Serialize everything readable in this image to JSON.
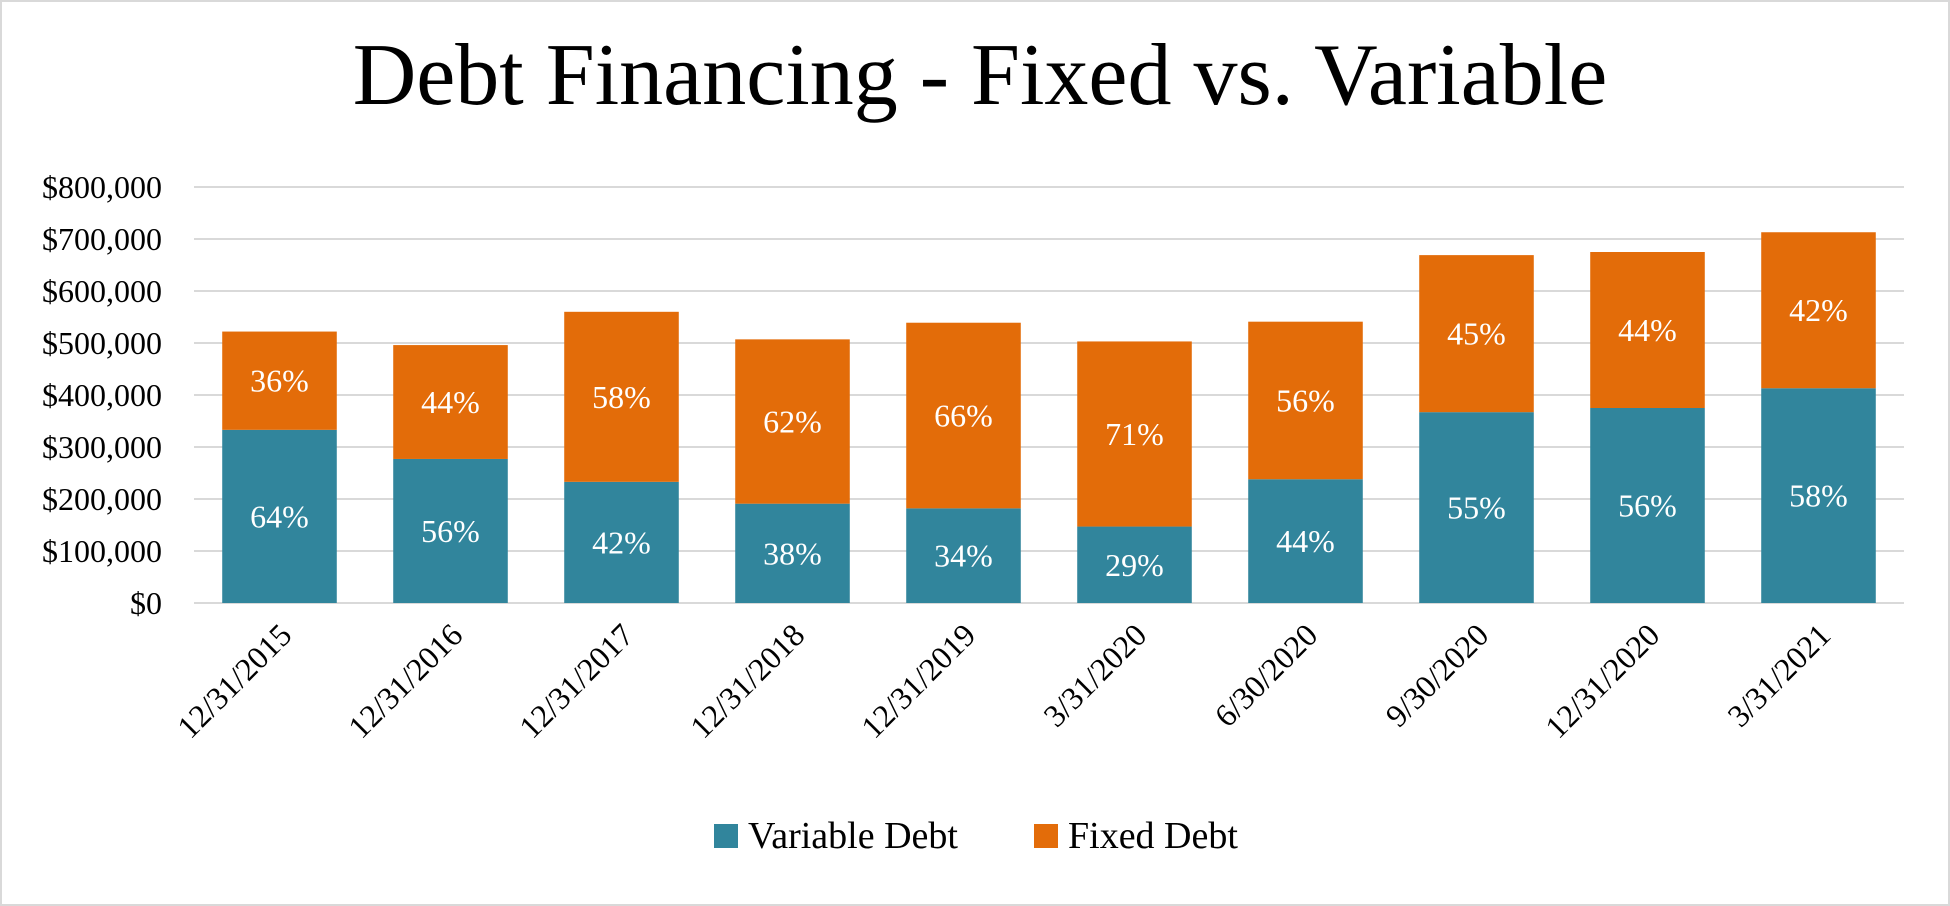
{
  "chart_data": {
    "type": "bar",
    "stacked": true,
    "title": "Debt Financing - Fixed vs. Variable",
    "xlabel": "",
    "ylabel": "",
    "ylim": [
      0,
      800000
    ],
    "yticks": [
      0,
      100000,
      200000,
      300000,
      400000,
      500000,
      600000,
      700000,
      800000
    ],
    "ytick_labels": [
      "$0",
      "$100,000",
      "$200,000",
      "$300,000",
      "$400,000",
      "$500,000",
      "$600,000",
      "$700,000",
      "$800,000"
    ],
    "grid": true,
    "legend_position": "bottom",
    "categories": [
      "12/31/2015",
      "12/31/2016",
      "12/31/2017",
      "12/31/2018",
      "12/31/2019",
      "3/31/2020",
      "6/30/2020",
      "9/30/2020",
      "12/31/2020",
      "3/31/2021"
    ],
    "series": [
      {
        "name": "Variable Debt",
        "color": "#31859c",
        "values": [
          333000,
          277000,
          233000,
          191000,
          182000,
          147000,
          238000,
          367000,
          375000,
          413000
        ],
        "labels": [
          "64%",
          "56%",
          "42%",
          "38%",
          "34%",
          "29%",
          "44%",
          "55%",
          "56%",
          "58%"
        ]
      },
      {
        "name": "Fixed Debt",
        "color": "#e36c09",
        "values": [
          189000,
          219000,
          327000,
          316000,
          357000,
          356000,
          303000,
          302000,
          300000,
          300000
        ],
        "labels": [
          "36%",
          "44%",
          "58%",
          "62%",
          "66%",
          "71%",
          "56%",
          "45%",
          "44%",
          "42%"
        ]
      }
    ]
  }
}
